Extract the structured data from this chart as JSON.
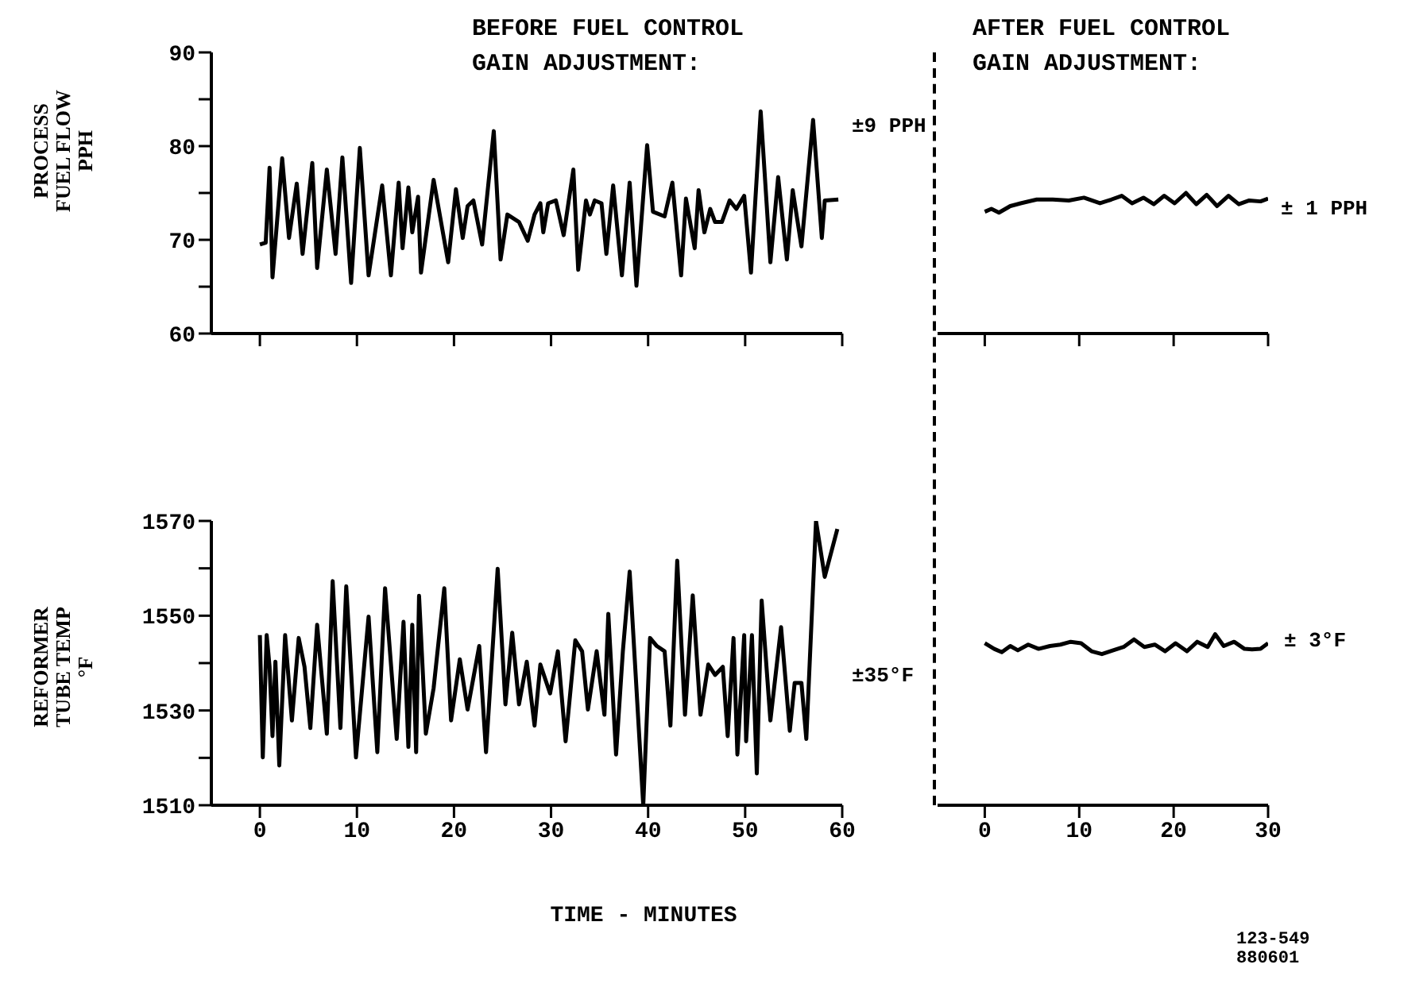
{
  "chart_data": [
    {
      "type": "line",
      "title": "BEFORE FUEL CONTROL\nGAIN ADJUSTMENT:",
      "ylabel": "PROCESS\nFUEL FLOW\nPPH",
      "annotations": [
        "±9 PPH"
      ],
      "tick_labels": "y",
      "x": [
        0,
        0.6,
        1.0,
        1.3,
        2.3,
        3.0,
        3.8,
        4.4,
        5.4,
        5.9,
        6.9,
        7.8,
        8.5,
        9.4,
        10.3,
        11.2,
        12.6,
        13.5,
        14.3,
        14.7,
        15.3,
        15.7,
        16.3,
        16.6,
        17.9,
        19.4,
        20.2,
        20.9,
        21.4,
        22.0,
        22.9,
        24.1,
        24.8,
        25.5,
        26.7,
        27.6,
        28.3,
        28.9,
        29.2,
        29.7,
        30.5,
        31.3,
        32.3,
        32.8,
        33.6,
        34.0,
        34.5,
        35.2,
        35.7,
        36.4,
        37.3,
        38.1,
        38.8,
        39.9,
        40.5,
        41.7,
        42.5,
        43.4,
        43.9,
        44.8,
        45.2,
        45.8,
        46.4,
        46.9,
        47.6,
        48.4,
        49.1,
        49.9,
        50.6,
        51.6,
        52.6,
        53.4,
        54.3,
        54.9,
        55.8,
        57.0,
        57.9,
        58.2,
        59.6
      ],
      "series": [
        {
          "color": "#000000",
          "values": [
            69.5,
            69.7,
            77.7,
            66,
            78.7,
            70.2,
            76,
            68.5,
            78.2,
            67,
            77.5,
            68.5,
            78.8,
            65.4,
            79.8,
            66.2,
            75.8,
            66.2,
            76.1,
            69.1,
            75.6,
            70.8,
            74.6,
            66.5,
            76.4,
            67.6,
            75.4,
            70.2,
            73.6,
            74.2,
            69.5,
            81.6,
            67.9,
            72.7,
            71.9,
            69.9,
            72.7,
            73.9,
            70.8,
            73.9,
            74.2,
            70.5,
            77.5,
            66.8,
            74.2,
            72.7,
            74.2,
            73.9,
            68.5,
            75.8,
            66.2,
            76.1,
            65.1,
            80.1,
            73,
            72.5,
            76.1,
            66.2,
            74.4,
            69.1,
            75.3,
            70.8,
            73.3,
            71.9,
            71.9,
            74.2,
            73.3,
            74.7,
            66.5,
            83.7,
            67.6,
            76.7,
            67.9,
            75.3,
            69.3,
            82.8,
            70.2,
            74.2,
            74.3
          ]
        }
      ],
      "xlim": [
        -5,
        60
      ],
      "xticks": [
        {
          "value": 0,
          "label": null
        },
        {
          "value": 10,
          "label": null
        },
        {
          "value": 20,
          "label": null
        },
        {
          "value": 30,
          "label": null
        },
        {
          "value": 40,
          "label": null
        },
        {
          "value": 50,
          "label": null
        },
        {
          "value": 60,
          "label": null
        }
      ],
      "ylim": [
        60,
        90
      ],
      "yticks": [
        60,
        {
          "value": 65,
          "label": null
        },
        70,
        {
          "value": 75,
          "label": null
        },
        80,
        {
          "value": 85,
          "label": null
        },
        90
      ]
    },
    {
      "type": "line",
      "title": "AFTER FUEL CONTROL\nGAIN ADJUSTMENT:",
      "annotations": [
        "± 1 PPH"
      ],
      "tick_labels": false,
      "x": [
        0,
        0.7,
        1.5,
        2.7,
        3.8,
        5.5,
        7.2,
        8.9,
        10.5,
        12.2,
        13.4,
        14.5,
        15.6,
        16.8,
        17.9,
        19.0,
        20.1,
        21.3,
        22.4,
        23.5,
        24.6,
        25.8,
        26.9,
        28.0,
        29.2,
        30.0
      ],
      "series": [
        {
          "color": "#000000",
          "values": [
            73.0,
            73.3,
            72.9,
            73.6,
            73.9,
            74.3,
            74.3,
            74.2,
            74.5,
            73.9,
            74.3,
            74.7,
            73.9,
            74.5,
            73.8,
            74.7,
            73.9,
            75.0,
            73.8,
            74.8,
            73.6,
            74.7,
            73.8,
            74.2,
            74.1,
            74.4
          ]
        }
      ],
      "xlim": [
        -5,
        30
      ],
      "xticks": [
        {
          "value": 0,
          "label": null
        },
        {
          "value": 10,
          "label": null
        },
        {
          "value": 20,
          "label": null
        },
        {
          "value": 30,
          "label": null
        }
      ],
      "ylim": [
        60,
        90
      ]
    },
    {
      "type": "line",
      "ylabel": "REFORMER\nTUBE TEMP\n°F",
      "xlabel": "TIME - MINUTES",
      "annotations": [
        "±35°F"
      ],
      "x": [
        0,
        0.3,
        0.7,
        1.0,
        1.3,
        1.6,
        2.0,
        2.6,
        3.3,
        4.0,
        4.6,
        5.2,
        5.9,
        6.9,
        7.5,
        8.3,
        8.9,
        9.9,
        11.2,
        12.1,
        12.9,
        14.1,
        14.8,
        15.3,
        15.7,
        16.1,
        16.4,
        17.1,
        17.9,
        19.0,
        19.7,
        20.6,
        21.4,
        22.6,
        23.3,
        24.5,
        25.3,
        26.0,
        26.7,
        27.5,
        28.3,
        28.9,
        29.9,
        30.7,
        31.5,
        32.5,
        33.2,
        33.8,
        34.7,
        35.5,
        35.9,
        36.7,
        37.4,
        38.1,
        39.5,
        40.2,
        40.9,
        41.7,
        42.3,
        43.0,
        43.8,
        44.6,
        45.4,
        46.2,
        46.9,
        47.7,
        48.2,
        48.8,
        49.2,
        49.9,
        50.1,
        50.7,
        51.2,
        51.7,
        52.6,
        53.7,
        54.6,
        55.1,
        55.8,
        56.3,
        57.3,
        58.2,
        59.5
      ],
      "series": [
        {
          "color": "#000000",
          "values": [
            1545.9,
            1520.1,
            1545.9,
            1539.2,
            1524.6,
            1540.3,
            1518.4,
            1545.9,
            1527.9,
            1545.3,
            1539.2,
            1526.3,
            1548.1,
            1525.1,
            1557.3,
            1526.3,
            1556.2,
            1520.1,
            1549.8,
            1521.2,
            1555.8,
            1524.0,
            1548.7,
            1522.3,
            1548.1,
            1521.2,
            1554.2,
            1525.1,
            1534.7,
            1555.8,
            1527.9,
            1540.8,
            1530.2,
            1543.6,
            1521.2,
            1559.9,
            1531.3,
            1546.4,
            1531.3,
            1540.3,
            1526.8,
            1539.7,
            1533.6,
            1542.5,
            1523.5,
            1544.8,
            1542.5,
            1530.2,
            1542.5,
            1529.1,
            1550.4,
            1520.7,
            1542.5,
            1559.3,
            1510,
            1545.3,
            1543.6,
            1542.5,
            1526.8,
            1561.6,
            1529.1,
            1554.3,
            1529.1,
            1539.7,
            1537.5,
            1539.2,
            1524.6,
            1545.3,
            1520.7,
            1545.9,
            1523.5,
            1545.9,
            1516.7,
            1553.2,
            1527.9,
            1547.6,
            1525.7,
            1535.8,
            1535.8,
            1524.0,
            1570,
            1558.2,
            1568.3
          ]
        }
      ],
      "xlim": [
        -5,
        60
      ],
      "xticks": [
        0,
        10,
        20,
        30,
        40,
        50,
        60
      ],
      "ylim": [
        1510,
        1570
      ],
      "yticks": [
        1510,
        {
          "value": 1520,
          "label": null
        },
        1530,
        {
          "value": 1540,
          "label": null
        },
        1550,
        {
          "value": 1560,
          "label": null
        },
        1570
      ]
    },
    {
      "type": "line",
      "annotations": [
        "± 3°F",
        "123-549\n880601"
      ],
      "tick_labels": "x",
      "x": [
        0,
        1.0,
        1.8,
        2.7,
        3.5,
        4.6,
        5.7,
        6.9,
        8.0,
        9.1,
        10.2,
        11.3,
        12.4,
        13.6,
        14.7,
        15.8,
        16.9,
        18.0,
        19.1,
        20.2,
        21.4,
        22.5,
        23.6,
        24.4,
        25.3,
        26.4,
        27.5,
        28.3,
        29.2,
        30.0
      ],
      "series": [
        {
          "color": "#000000",
          "values": [
            1544.2,
            1543.0,
            1542.3,
            1543.6,
            1542.7,
            1543.9,
            1543.0,
            1543.6,
            1543.9,
            1544.5,
            1544.2,
            1542.5,
            1541.9,
            1542.7,
            1543.4,
            1545.0,
            1543.4,
            1543.9,
            1542.5,
            1544.2,
            1542.5,
            1544.5,
            1543.4,
            1546.1,
            1543.6,
            1544.5,
            1543.0,
            1542.9,
            1543.0,
            1544.2
          ]
        }
      ],
      "xlim": [
        -5,
        30
      ],
      "xticks": [
        0,
        10,
        20,
        30
      ],
      "ylim": [
        1510,
        1570
      ]
    }
  ]
}
